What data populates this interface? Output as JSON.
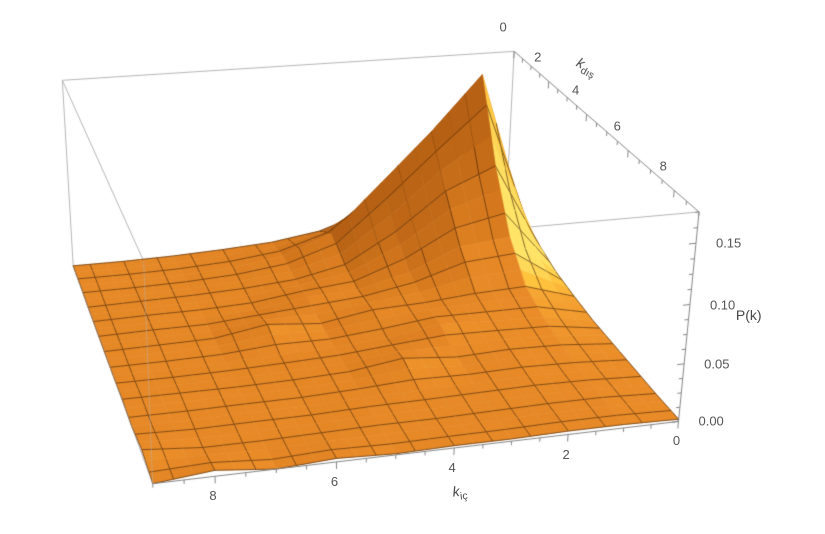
{
  "chart_data": {
    "type": "surface3d",
    "title": "",
    "description": "3D surface plot of joint degree distribution P(k) over internal degree k_ic and external degree k_dis",
    "axes": {
      "x": {
        "name": "k_ic",
        "label_base": "k",
        "label_sub": "iç",
        "range": [
          0,
          9
        ],
        "major_ticks": [
          0,
          2,
          4,
          6,
          8
        ],
        "major_tick_labels": [
          "0",
          "2",
          "4",
          "6",
          "8"
        ],
        "minor_tick_step": 0.5
      },
      "y": {
        "name": "k_dis",
        "label_base": "k",
        "label_sub": "dış",
        "range": [
          0,
          9
        ],
        "major_ticks": [
          0,
          2,
          4,
          6,
          8
        ],
        "major_tick_labels": [
          "0",
          "2",
          "4",
          "6",
          "8"
        ],
        "minor_tick_step": 0.5
      },
      "z": {
        "name": "P(k)",
        "label": "P(k)",
        "range": [
          0,
          0.175
        ],
        "major_ticks": [
          0,
          0.05,
          0.1,
          0.15
        ],
        "major_tick_labels": [
          "0.00",
          "0.05",
          "0.10",
          "0.15"
        ],
        "minor_tick_step": 0.0125
      }
    },
    "surface": {
      "k_ic_values": [
        0,
        1,
        2,
        3,
        4,
        5,
        6,
        7,
        8,
        9
      ],
      "k_dis_values": [
        0,
        1,
        2,
        3,
        4,
        5,
        6,
        7,
        8,
        9
      ],
      "values": [
        [
          0.01,
          0.08,
          0.06,
          0.03,
          0.014,
          0.007,
          0.004,
          0.002,
          0.001,
          0.001
        ],
        [
          0.03,
          0.17,
          0.12,
          0.075,
          0.03,
          0.012,
          0.005,
          0.002,
          0.001,
          0.001
        ],
        [
          0.02,
          0.1,
          0.08,
          0.045,
          0.018,
          0.008,
          0.004,
          0.002,
          0.001,
          0.0
        ],
        [
          0.012,
          0.05,
          0.045,
          0.025,
          0.013,
          0.011,
          0.003,
          0.001,
          0.001,
          0.0
        ],
        [
          0.008,
          0.022,
          0.02,
          0.016,
          0.014,
          0.006,
          0.01,
          0.002,
          0.001,
          0.0
        ],
        [
          0.005,
          0.013,
          0.014,
          0.016,
          0.008,
          0.005,
          0.003,
          0.001,
          0.0,
          0.0
        ],
        [
          0.004,
          0.008,
          0.009,
          0.007,
          0.011,
          0.004,
          0.002,
          0.001,
          0.001,
          0.001
        ],
        [
          0.003,
          0.005,
          0.006,
          0.005,
          0.004,
          0.003,
          0.001,
          0.001,
          0.0,
          0.0
        ],
        [
          0.002,
          0.004,
          0.004,
          0.003,
          0.002,
          0.002,
          0.001,
          0.0,
          0.0,
          0.004
        ],
        [
          0.002,
          0.003,
          0.003,
          0.002,
          0.002,
          0.001,
          0.003,
          0.0,
          0.005,
          0.0
        ]
      ]
    },
    "style": {
      "background": "#ffffff",
      "surface_base_color": "#ea8c28",
      "surface_highlight_color": "#ffe468",
      "surface_shadow_color": "#6b3105",
      "mesh_color": "rgba(70,35,3,0.8)",
      "box_edge_color": "#b5b5b5",
      "axis_line_color": "#858585",
      "tick_text_color": "#545454",
      "label_text_color": "#474747",
      "shade_ramp": [
        [
          "0.00",
          "#6b3105"
        ],
        [
          "0.28",
          "#b05c12"
        ],
        [
          "0.50",
          "#d77a1e"
        ],
        [
          "0.62",
          "#ea8c28"
        ],
        [
          "0.74",
          "#f5a231"
        ],
        [
          "0.88",
          "#ffc33e"
        ],
        [
          "1.00",
          "#ffe468"
        ]
      ]
    }
  }
}
